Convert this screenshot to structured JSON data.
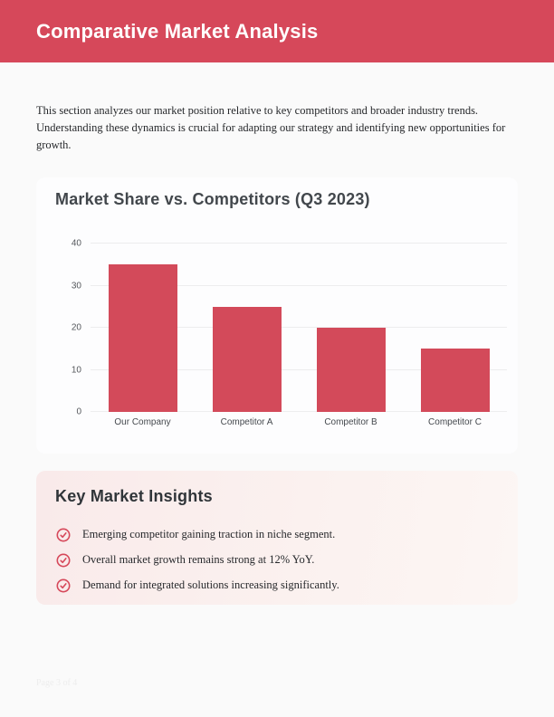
{
  "page": {
    "background": "#fafafa",
    "footer": "Page 3 of 4"
  },
  "header": {
    "title": "Comparative Market Analysis",
    "background": "#d6485a",
    "text_color": "#ffffff"
  },
  "intro": {
    "text": "This section analyzes our market position relative to key competitors and broader industry trends. Understanding these dynamics is crucial for adapting our strategy and identifying new opportunities for growth."
  },
  "chart_data": {
    "type": "bar",
    "title": "Market Share vs. Competitors (Q3 2023)",
    "categories": [
      "Our Company",
      "Competitor A",
      "Competitor B",
      "Competitor C"
    ],
    "values": [
      35,
      25,
      20,
      15
    ],
    "ylim": [
      0,
      40
    ],
    "yticks": [
      0,
      10,
      20,
      30,
      40
    ],
    "bar_color": "#d34a5a",
    "grid": true,
    "legend": false,
    "xlabel": "",
    "ylabel": ""
  },
  "insights": {
    "title": "Key Market Insights",
    "accent": "#d6485a",
    "items": [
      "Emerging competitor gaining traction in niche segment.",
      "Overall market growth remains strong at 12% YoY.",
      "Demand for integrated solutions increasing significantly."
    ]
  }
}
